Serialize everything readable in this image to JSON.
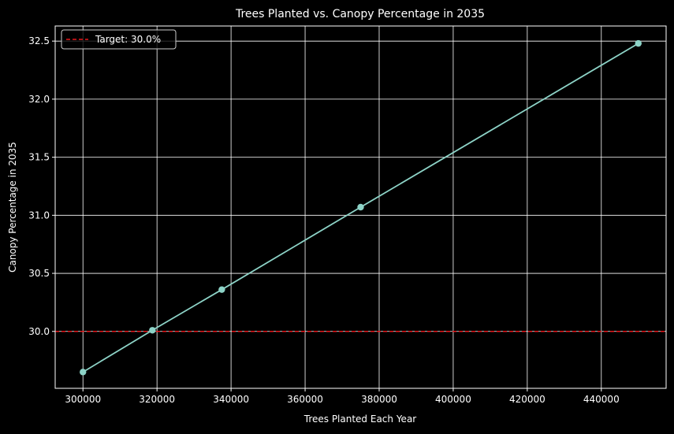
{
  "chart_data": {
    "type": "line",
    "title": "Trees Planted vs. Canopy Percentage in 2035",
    "xlabel": "Trees Planted Each Year",
    "ylabel": "Canopy Percentage in 2035",
    "xlim": [
      292500,
      457500
    ],
    "ylim": [
      29.51,
      32.63
    ],
    "x_ticks": [
      300000,
      320000,
      340000,
      360000,
      380000,
      400000,
      420000,
      440000
    ],
    "y_ticks": [
      30.0,
      30.5,
      31.0,
      31.5,
      32.0,
      32.5
    ],
    "x_tick_labels": [
      "300000",
      "320000",
      "340000",
      "360000",
      "380000",
      "400000",
      "420000",
      "440000"
    ],
    "y_tick_labels": [
      "30.0",
      "30.5",
      "31.0",
      "31.5",
      "32.0",
      "32.5"
    ],
    "grid": true,
    "legend_placement": "upper-left",
    "series": [
      {
        "x": [
          300000,
          318750,
          337500,
          375000,
          450000
        ],
        "values": [
          29.65,
          30.01,
          30.36,
          31.07,
          32.48
        ],
        "color": "#8dd3c7",
        "marker": "circle"
      }
    ],
    "reference_lines": [
      {
        "orientation": "horizontal",
        "y": 30.0,
        "label": "Target: 30.0%",
        "color": "#e8191c",
        "style": "dashed"
      }
    ],
    "colors": {
      "background": "#000000",
      "foreground": "#ffffff",
      "grid": "#ffffff"
    }
  }
}
